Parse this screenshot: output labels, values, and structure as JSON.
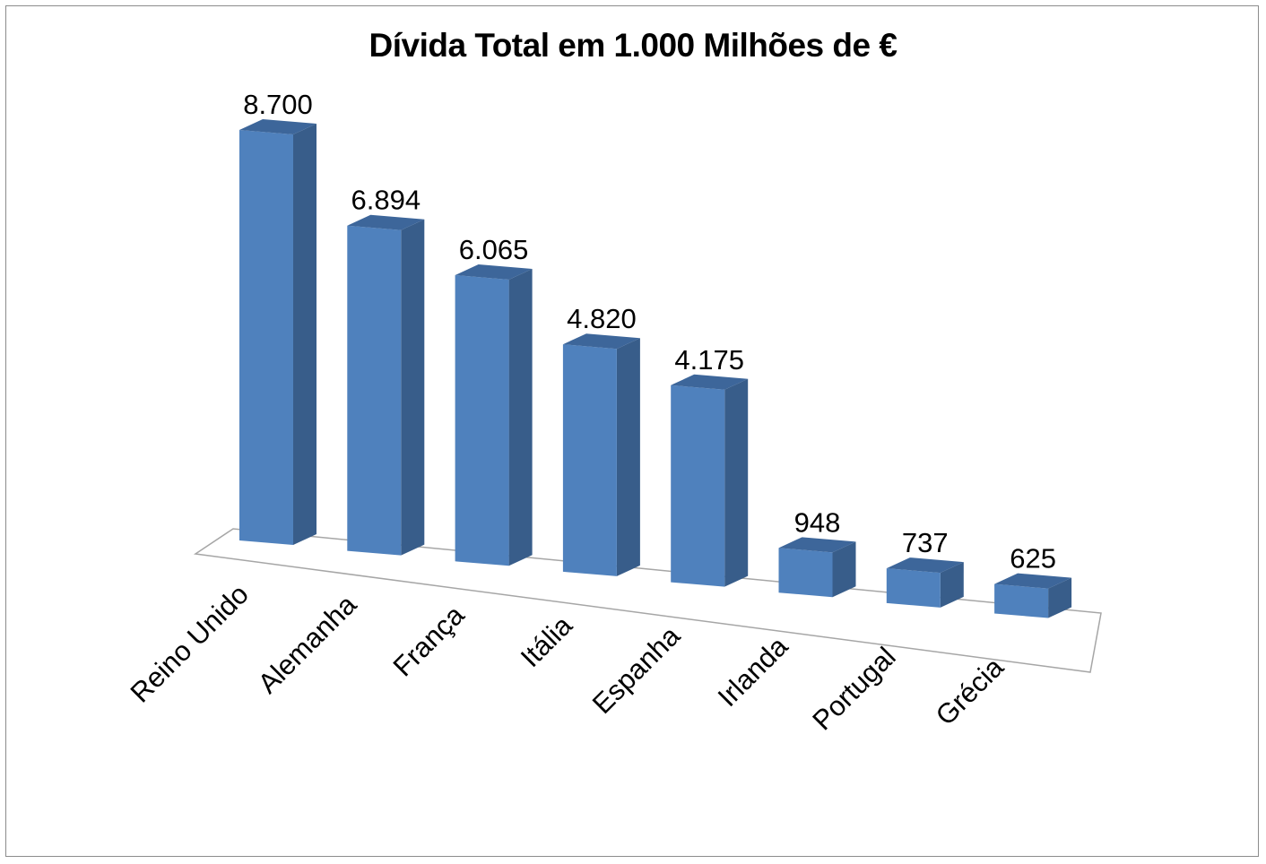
{
  "chart_data": {
    "type": "bar",
    "title": "Dívida Total em 1.000 Milhões de €",
    "categories": [
      "Reino Unido",
      "Alemanha",
      "França",
      "Itália",
      "Espanha",
      "Irlanda",
      "Portugal",
      "Grécia"
    ],
    "values": [
      8700,
      6894,
      6065,
      4820,
      4175,
      948,
      737,
      625
    ],
    "data_labels": [
      "8.700",
      "6.894",
      "6.065",
      "4.820",
      "4.175",
      "948",
      "737",
      "625"
    ],
    "style": "3d-column",
    "bar_color": "#4f81bd",
    "bar_side_color": "#385d8a",
    "bar_top_color": "#3d669a",
    "legend": "none",
    "grid": false
  }
}
